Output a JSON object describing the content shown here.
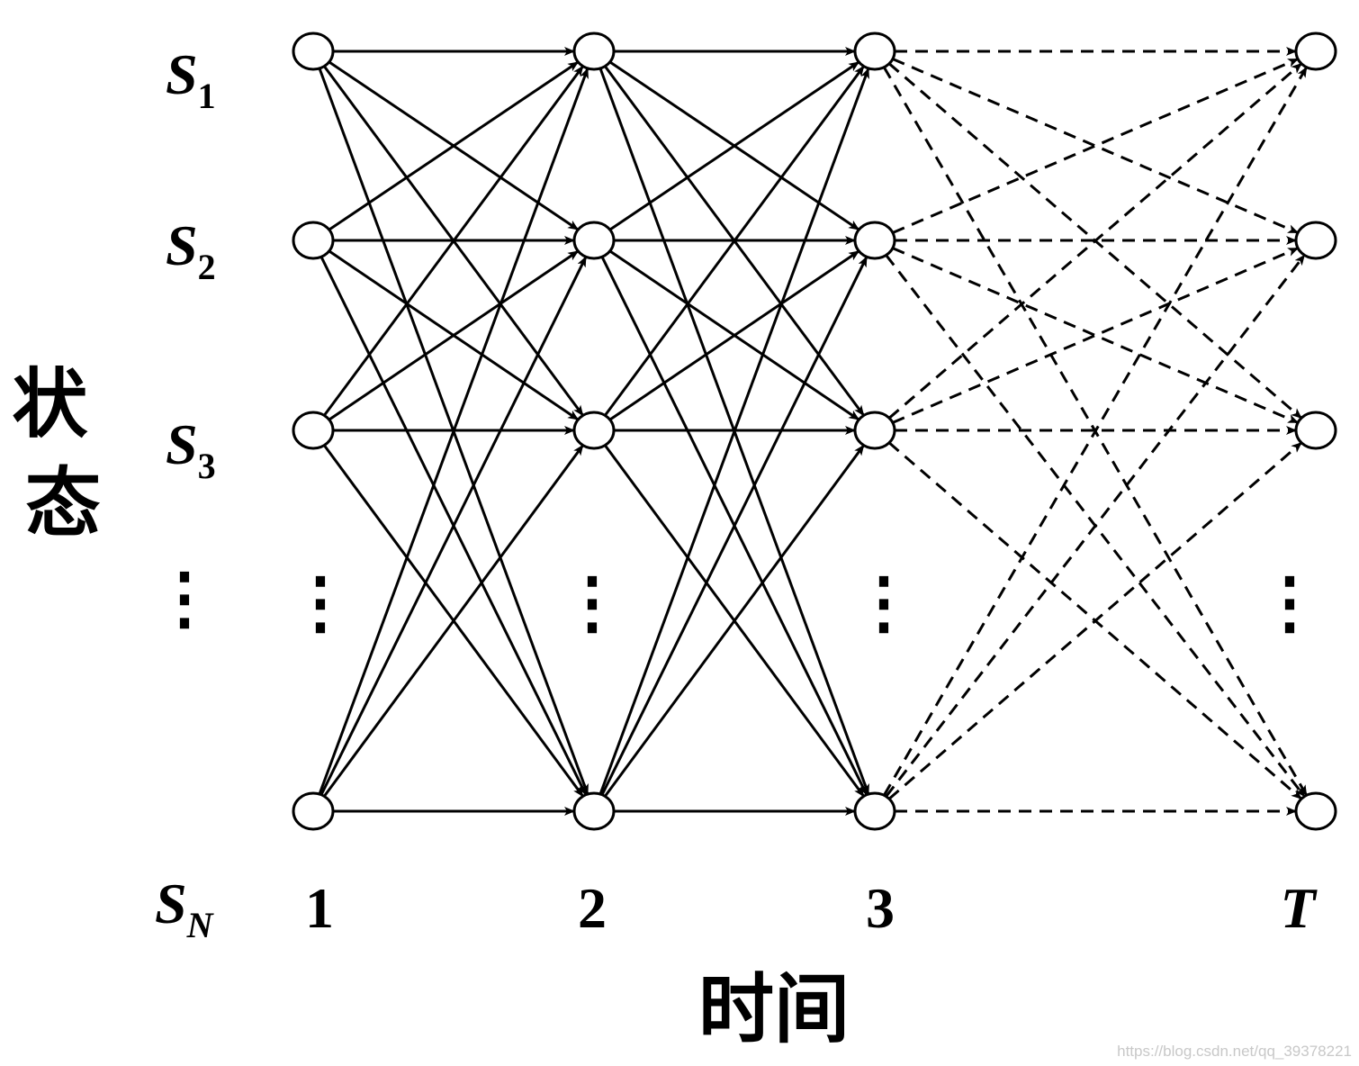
{
  "states": [
    {
      "name": "S",
      "sub": "1"
    },
    {
      "name": "S",
      "sub": "2"
    },
    {
      "name": "S",
      "sub": "3"
    },
    {
      "name": "S",
      "sub": "N"
    }
  ],
  "times": [
    "1",
    "2",
    "3",
    "T"
  ],
  "y_axis_label": "状态",
  "x_axis_label": "时间",
  "ellipsis": "⋮",
  "watermark": "https://blog.csdn.net/qq_39378221",
  "colors": {
    "stroke": "#000000",
    "node_fill": "#ffffff",
    "watermark": "#c8c8c8"
  },
  "edges_style": {
    "solid_stages": [
      "1-2",
      "2-3"
    ],
    "dashed_stages": [
      "3-T"
    ]
  }
}
